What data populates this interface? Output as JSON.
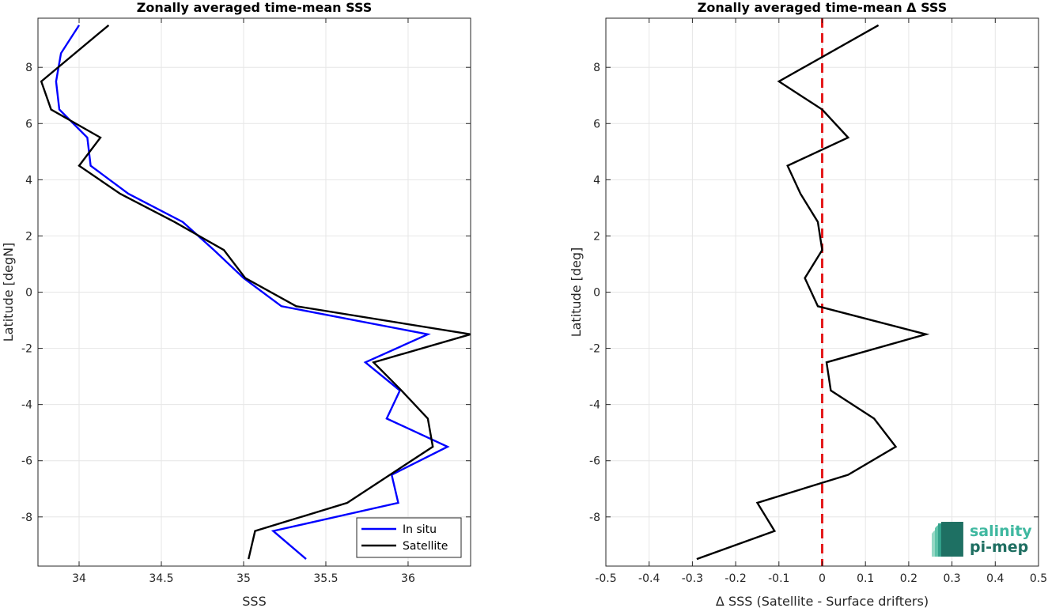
{
  "colors": {
    "in_situ": "#0000ff",
    "satellite": "#000000",
    "zero_line": "#e41a1c",
    "grid": "#e6e6e6",
    "axis": "#262626",
    "logo_dark": "#1e6e61",
    "logo_light": "#3fb8a0"
  },
  "logo": {
    "line1": "salinity",
    "line2": "pi-mep",
    "icon": "wave-logo-icon"
  },
  "chart_data": [
    {
      "type": "line",
      "title": "Zonally averaged time-mean SSS",
      "xlabel": "SSS",
      "ylabel": "Latitude [degN]",
      "xlim": [
        33.75,
        36.38
      ],
      "ylim": [
        -9.75,
        9.75
      ],
      "xticks": [
        34,
        34.5,
        35,
        35.5,
        36
      ],
      "xtick_labels": [
        "34",
        "34.5",
        "35",
        "35.5",
        "36"
      ],
      "yticks": [
        -8,
        -6,
        -4,
        -2,
        0,
        2,
        4,
        6,
        8
      ],
      "ytick_labels": [
        "-8",
        "-6",
        "-4",
        "-2",
        "0",
        "2",
        "4",
        "6",
        "8"
      ],
      "grid": true,
      "legend": {
        "position": "bottom-right",
        "entries": [
          "In situ",
          "Satellite"
        ]
      },
      "series": [
        {
          "name": "In situ",
          "color": "#0000ff",
          "points": [
            [
              34.0,
              9.5
            ],
            [
              33.89,
              8.5
            ],
            [
              33.86,
              7.5
            ],
            [
              33.88,
              6.5
            ],
            [
              34.05,
              5.5
            ],
            [
              34.07,
              4.5
            ],
            [
              34.3,
              3.5
            ],
            [
              34.63,
              2.5
            ],
            [
              34.82,
              1.5
            ],
            [
              35.0,
              0.5
            ],
            [
              35.23,
              -0.5
            ],
            [
              36.12,
              -1.5
            ],
            [
              35.74,
              -2.5
            ],
            [
              35.95,
              -3.5
            ],
            [
              35.87,
              -4.5
            ],
            [
              36.24,
              -5.5
            ],
            [
              35.9,
              -6.5
            ],
            [
              35.94,
              -7.5
            ],
            [
              35.18,
              -8.5
            ],
            [
              35.38,
              -9.5
            ]
          ]
        },
        {
          "name": "Satellite",
          "color": "#000000",
          "points": [
            [
              34.18,
              9.5
            ],
            [
              33.77,
              7.5
            ],
            [
              33.83,
              6.5
            ],
            [
              34.13,
              5.5
            ],
            [
              34.0,
              4.5
            ],
            [
              34.25,
              3.5
            ],
            [
              34.58,
              2.5
            ],
            [
              34.88,
              1.5
            ],
            [
              35.01,
              0.5
            ],
            [
              35.32,
              -0.5
            ],
            [
              36.38,
              -1.5
            ],
            [
              35.79,
              -2.5
            ],
            [
              35.96,
              -3.5
            ],
            [
              36.12,
              -4.5
            ],
            [
              36.15,
              -5.5
            ],
            [
              35.89,
              -6.5
            ],
            [
              35.63,
              -7.5
            ],
            [
              35.07,
              -8.5
            ],
            [
              35.03,
              -9.5
            ]
          ]
        }
      ]
    },
    {
      "type": "line",
      "title": "Zonally averaged time-mean Δ SSS",
      "xlabel": "Δ SSS (Satellite - Surface drifters)",
      "ylabel": "Latitude [deg]",
      "xlim": [
        -0.5,
        0.5
      ],
      "ylim": [
        -9.75,
        9.75
      ],
      "xticks": [
        -0.5,
        -0.4,
        -0.3,
        -0.2,
        -0.1,
        0,
        0.1,
        0.2,
        0.3,
        0.4,
        0.5
      ],
      "xtick_labels": [
        "-0.5",
        "-0.4",
        "-0.3",
        "-0.2",
        "-0.1",
        "0",
        "0.1",
        "0.2",
        "0.3",
        "0.4",
        "0.5"
      ],
      "yticks": [
        -8,
        -6,
        -4,
        -2,
        0,
        2,
        4,
        6,
        8
      ],
      "ytick_labels": [
        "-8",
        "-6",
        "-4",
        "-2",
        "0",
        "2",
        "4",
        "6",
        "8"
      ],
      "grid": true,
      "reference_line": {
        "x": 0,
        "style": "dashed",
        "color": "#e41a1c"
      },
      "series": [
        {
          "color": "#000000",
          "points": [
            [
              0.13,
              9.5
            ],
            [
              -0.1,
              7.5
            ],
            [
              0.0,
              6.5
            ],
            [
              0.06,
              5.5
            ],
            [
              -0.08,
              4.5
            ],
            [
              -0.05,
              3.5
            ],
            [
              -0.01,
              2.5
            ],
            [
              0.0,
              1.5
            ],
            [
              -0.04,
              0.5
            ],
            [
              -0.01,
              -0.5
            ],
            [
              0.24,
              -1.5
            ],
            [
              0.01,
              -2.5
            ],
            [
              0.02,
              -3.5
            ],
            [
              0.12,
              -4.5
            ],
            [
              0.17,
              -5.5
            ],
            [
              0.06,
              -6.5
            ],
            [
              -0.15,
              -7.5
            ],
            [
              -0.11,
              -8.5
            ],
            [
              -0.29,
              -9.5
            ]
          ]
        }
      ]
    }
  ]
}
